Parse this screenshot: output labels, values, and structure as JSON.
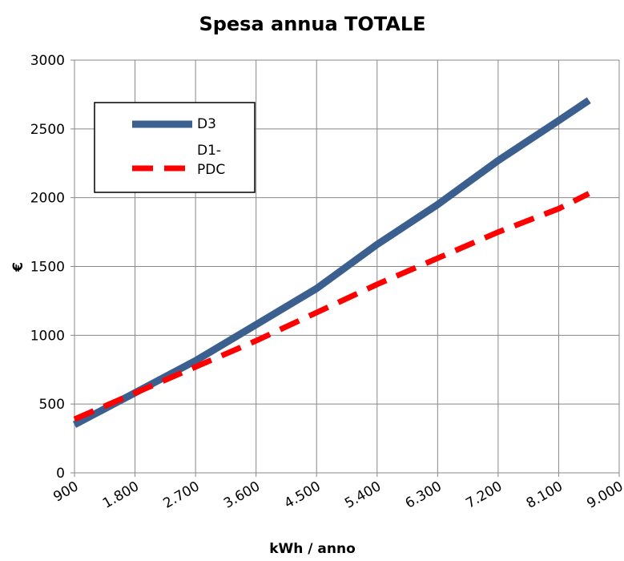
{
  "chart_data": {
    "type": "line",
    "title": "Spesa annua TOTALE",
    "xlabel": "kWh / anno",
    "ylabel": "€",
    "x": [
      900,
      1800,
      2700,
      3600,
      4500,
      5400,
      6300,
      7200,
      8100,
      8550
    ],
    "series": [
      {
        "name": "D3",
        "color": "#3b5f8f",
        "dash": false,
        "values": [
          350,
          582,
          815,
          1077,
          1340,
          1660,
          1950,
          2270,
          2560,
          2708
        ]
      },
      {
        "name": "D1-PDC",
        "color": "#ff0000",
        "dash": true,
        "values": [
          390,
          580,
          770,
          960,
          1165,
          1370,
          1560,
          1750,
          1920,
          2030
        ]
      }
    ],
    "xlim": [
      900,
      9000
    ],
    "xticks": [
      900,
      {
        "value": 1800,
        "label": "1.800"
      },
      {
        "value": 2700,
        "label": "2.700"
      },
      {
        "value": 3600,
        "label": "3.600"
      },
      {
        "value": 4500,
        "label": "4.500"
      },
      {
        "value": 5400,
        "label": "5.400"
      },
      {
        "value": 6300,
        "label": "6.300"
      },
      {
        "value": 7200,
        "label": "7.200"
      },
      {
        "value": 8100,
        "label": "8.100"
      },
      {
        "value": 9000,
        "label": "9.000"
      }
    ],
    "ylim": [
      0,
      3000
    ],
    "yticks": [
      0,
      500,
      1000,
      1500,
      2000,
      2500,
      3000
    ],
    "grid": true,
    "legend": "upper left"
  }
}
